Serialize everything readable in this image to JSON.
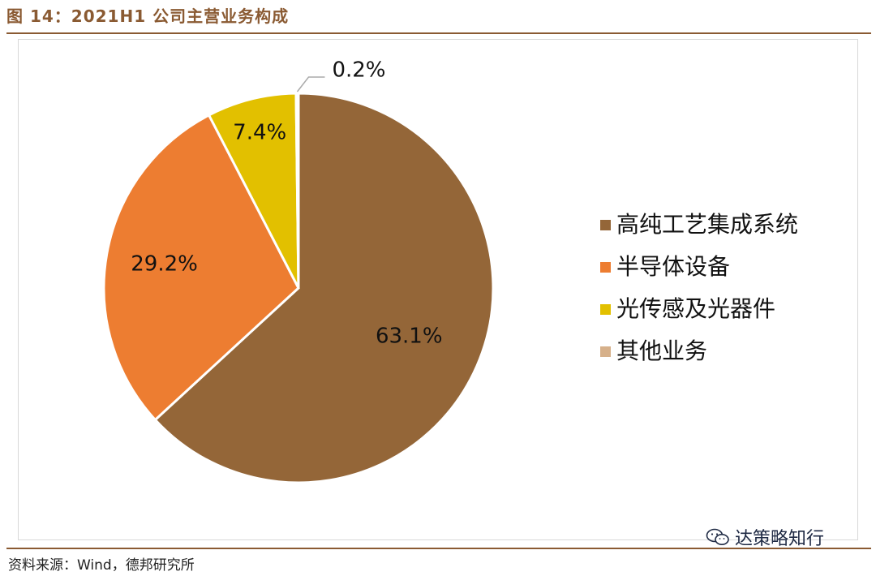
{
  "figure": {
    "title": "图 14：2021H1 公司主营业务构成",
    "source": "资料来源：Wind，德邦研究所",
    "watermark": "达策略知行",
    "watermark_icon": "wechat-icon"
  },
  "chart_data": {
    "type": "pie",
    "title": "",
    "categories": [
      "高纯工艺集成系统",
      "半导体设备",
      "光传感及光器件",
      "其他业务"
    ],
    "values": [
      63.1,
      29.2,
      7.4,
      0.2
    ],
    "data_labels": [
      "63.1%",
      "29.2%",
      "7.4%",
      "0.2%"
    ],
    "colors": [
      "#946638",
      "#ed7d31",
      "#e2c000",
      "#d6b08a"
    ],
    "start_angle_deg": 0,
    "direction": "clockwise",
    "legend_position": "right"
  }
}
